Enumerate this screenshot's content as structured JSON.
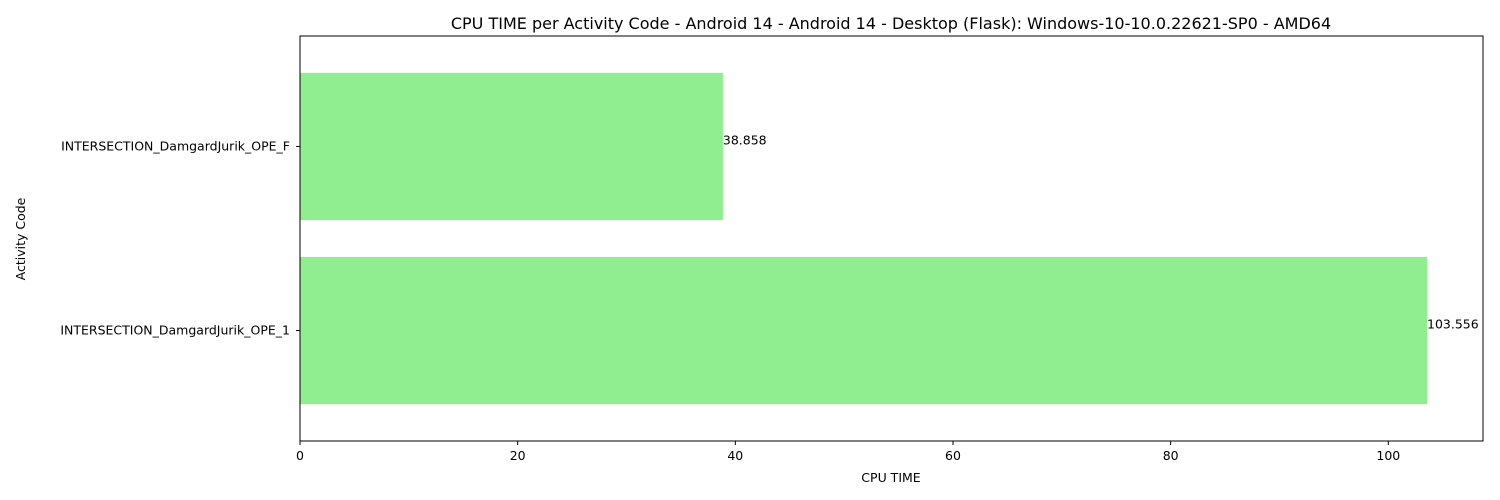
{
  "chart_data": {
    "type": "bar",
    "orientation": "horizontal",
    "title": "CPU TIME per Activity Code - Android 14 - Android 14 - Desktop (Flask): Windows-10-10.0.22621-SP0 - AMD64",
    "xlabel": "CPU TIME",
    "ylabel": "Activity Code",
    "categories": [
      "INTERSECTION_DamgardJurik_OPE_F",
      "INTERSECTION_DamgardJurik_OPE_1"
    ],
    "values": [
      38.858,
      103.556
    ],
    "data_labels": [
      "38.858",
      "103.556"
    ],
    "xlim": [
      0,
      108.7
    ],
    "xticks": [
      0,
      20,
      40,
      60,
      80,
      100
    ],
    "grid": false,
    "legend": "none",
    "bar_color": "#90ee90"
  }
}
